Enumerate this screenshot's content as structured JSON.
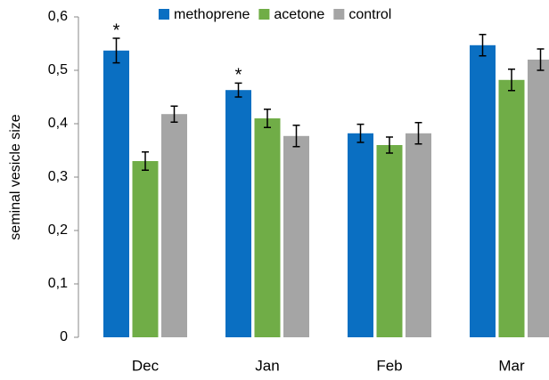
{
  "chart_data": {
    "type": "bar",
    "y_label": "seminal vesicle size",
    "categories": [
      "Dec",
      "Jan",
      "Feb",
      "Mar"
    ],
    "series": [
      {
        "name": "methoprene",
        "color": "#0a6fc2",
        "values": [
          0.537,
          0.463,
          0.382,
          0.547
        ],
        "errors": [
          0.023,
          0.013,
          0.017,
          0.02
        ]
      },
      {
        "name": "acetone",
        "color": "#70ad47",
        "values": [
          0.33,
          0.41,
          0.36,
          0.482
        ],
        "errors": [
          0.017,
          0.017,
          0.015,
          0.02
        ]
      },
      {
        "name": "control",
        "color": "#a5a5a5",
        "values": [
          0.418,
          0.377,
          0.382,
          0.52
        ],
        "errors": [
          0.015,
          0.02,
          0.02,
          0.02
        ]
      }
    ],
    "annotations": [
      {
        "text": "*",
        "category": 0,
        "series": 0
      },
      {
        "text": "*",
        "category": 1,
        "series": 0
      }
    ],
    "ylim": [
      0,
      0.6
    ],
    "yticks": [
      0,
      {
        "value": 0.1,
        "label": "0,1"
      },
      {
        "value": 0.2,
        "label": "0,2"
      },
      {
        "value": 0.3,
        "label": "0,3"
      },
      {
        "value": 0.4,
        "label": "0,4"
      },
      {
        "value": 0.5,
        "label": "0,5"
      },
      {
        "value": 0.6,
        "label": "0,6"
      }
    ],
    "grid": false,
    "legend": "top"
  }
}
